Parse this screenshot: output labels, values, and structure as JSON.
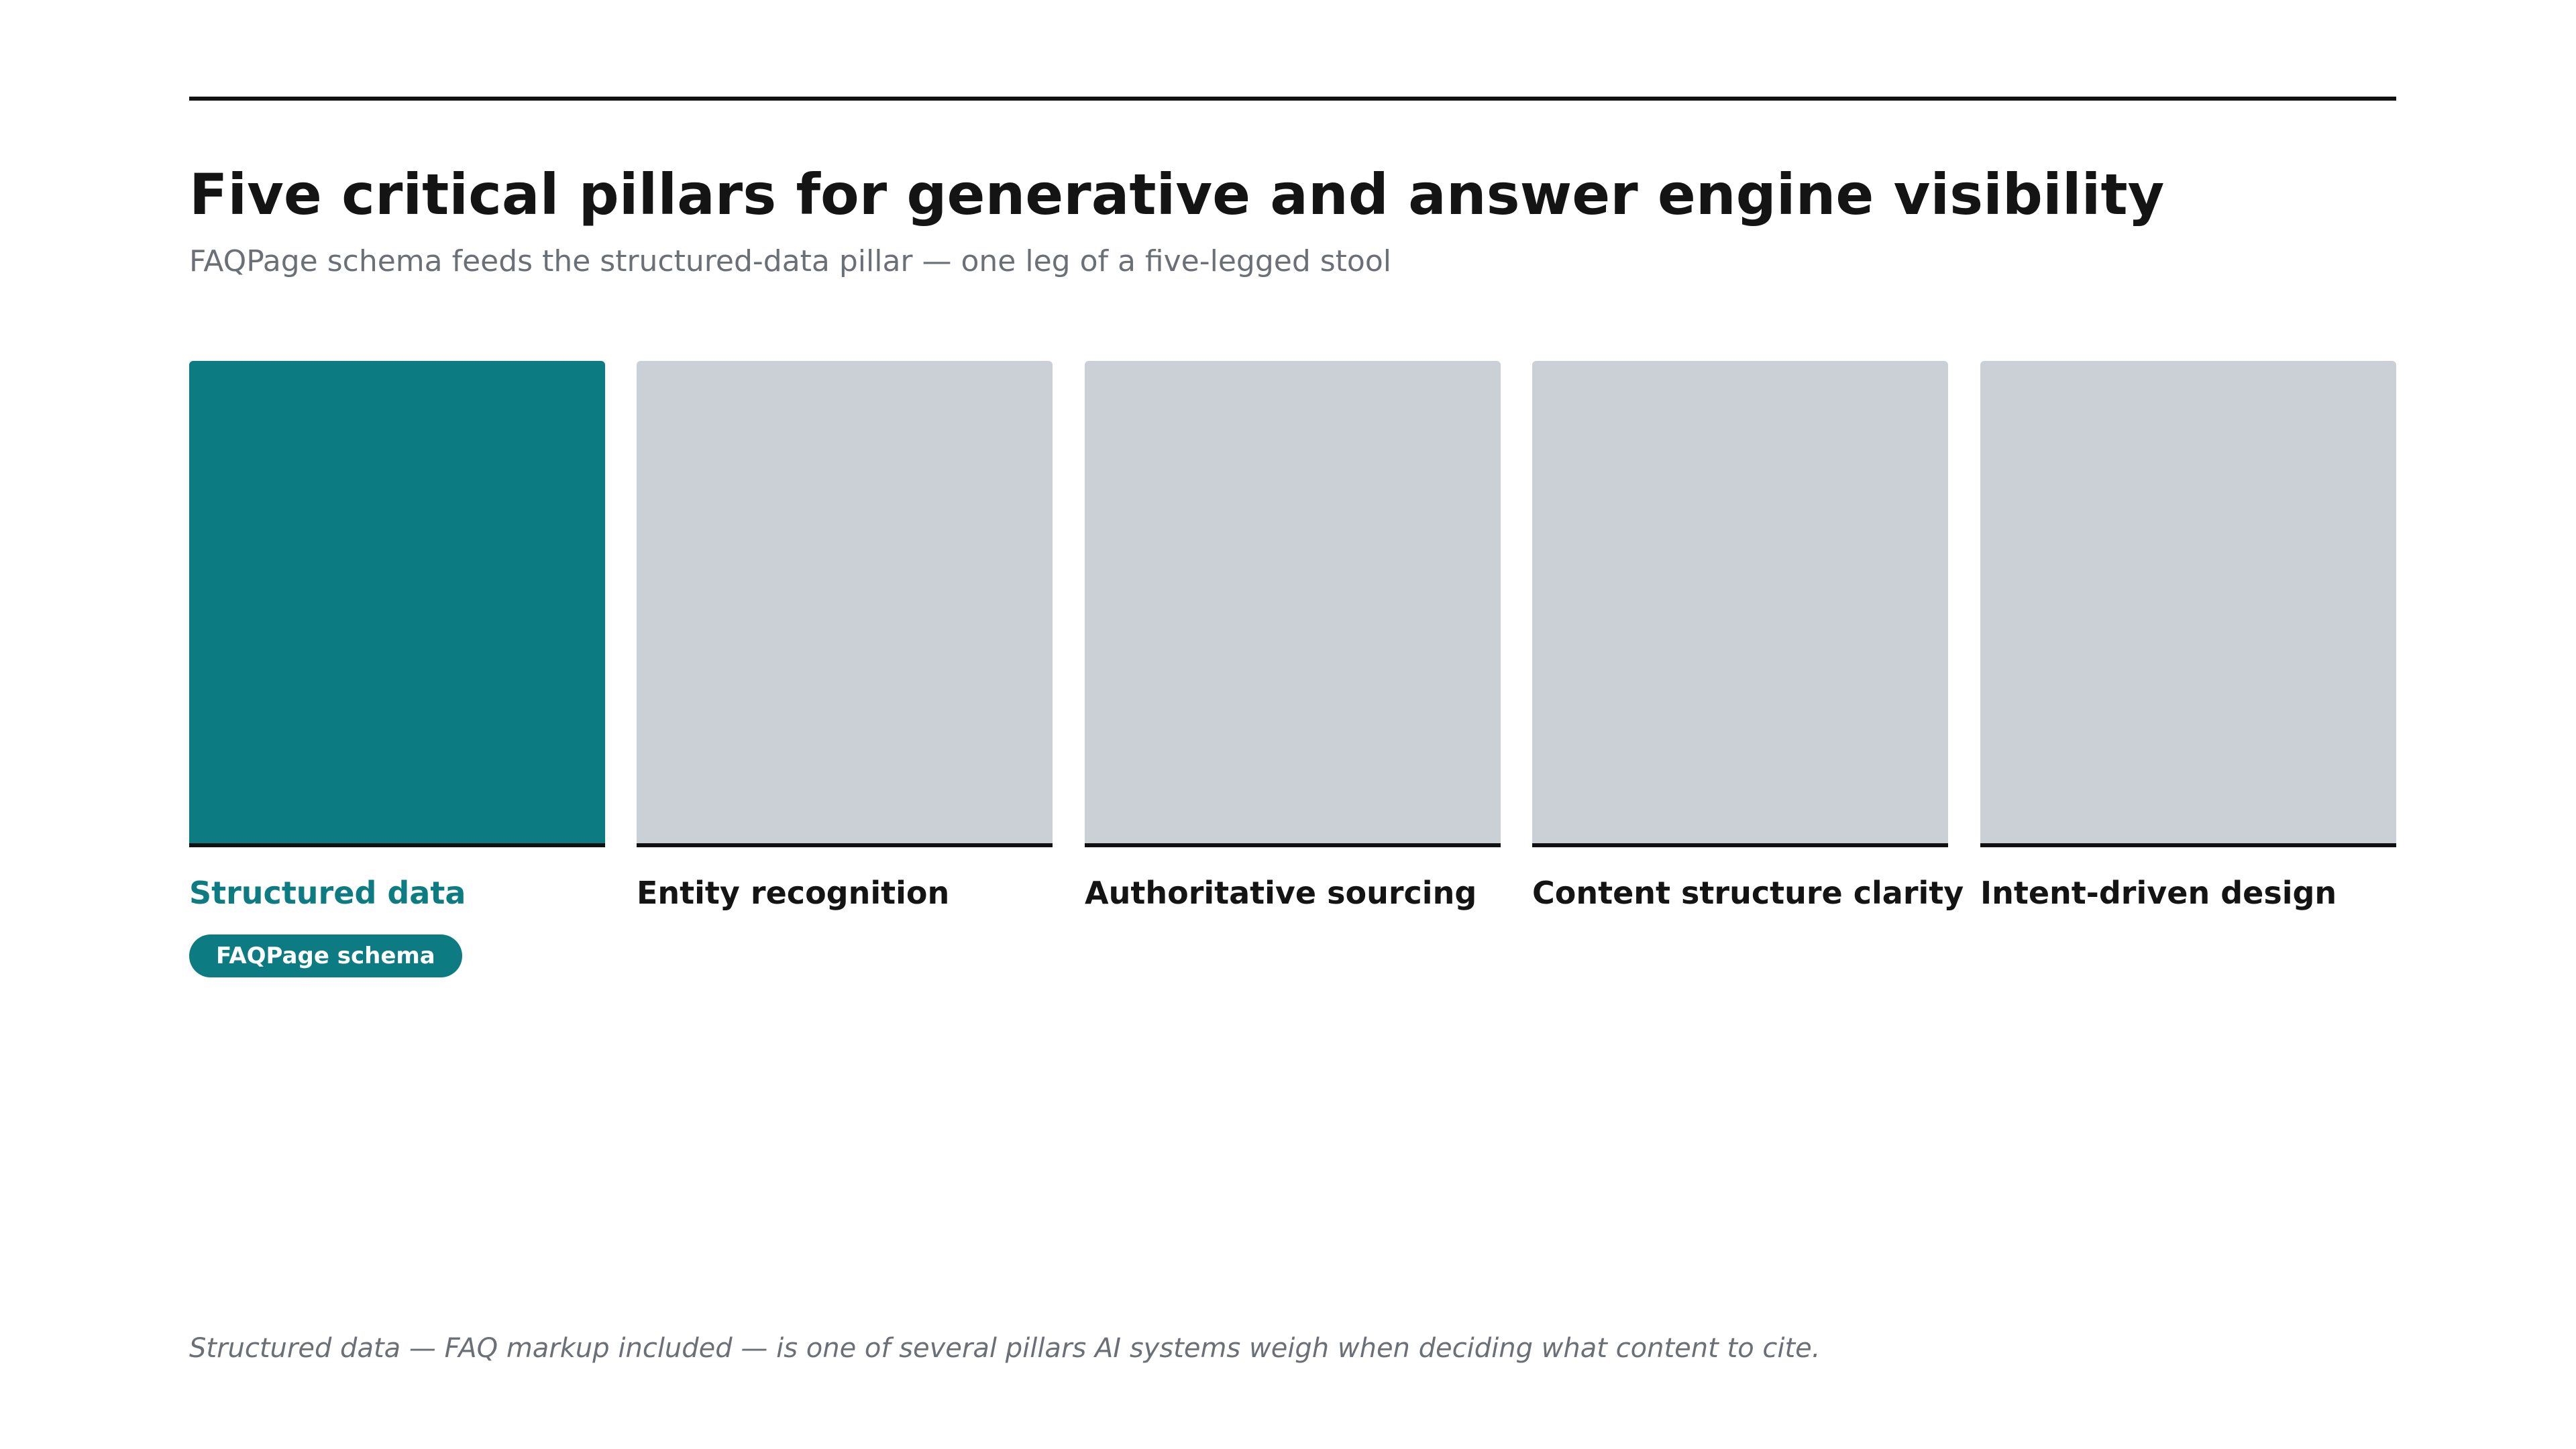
{
  "header": {
    "title": "Five critical pillars for generative and answer engine visibility",
    "subtitle": "FAQPage schema feeds the structured-data pillar — one leg of a five-legged stool"
  },
  "pillars": [
    {
      "label": "Structured data",
      "highlighted": true,
      "badge": "FAQPage schema"
    },
    {
      "label": "Entity recognition",
      "highlighted": false
    },
    {
      "label": "Authoritative sourcing",
      "highlighted": false
    },
    {
      "label": "Content structure clarity",
      "highlighted": false
    },
    {
      "label": "Intent-driven design",
      "highlighted": false
    }
  ],
  "footnote": "Structured data — FAQ markup included — is one of several pillars AI systems weigh when deciding what content to cite.",
  "colors": {
    "accent": "#0c7b82",
    "inactive": "#cbd0d6",
    "text": "#141414",
    "muted": "#6b6f76"
  }
}
